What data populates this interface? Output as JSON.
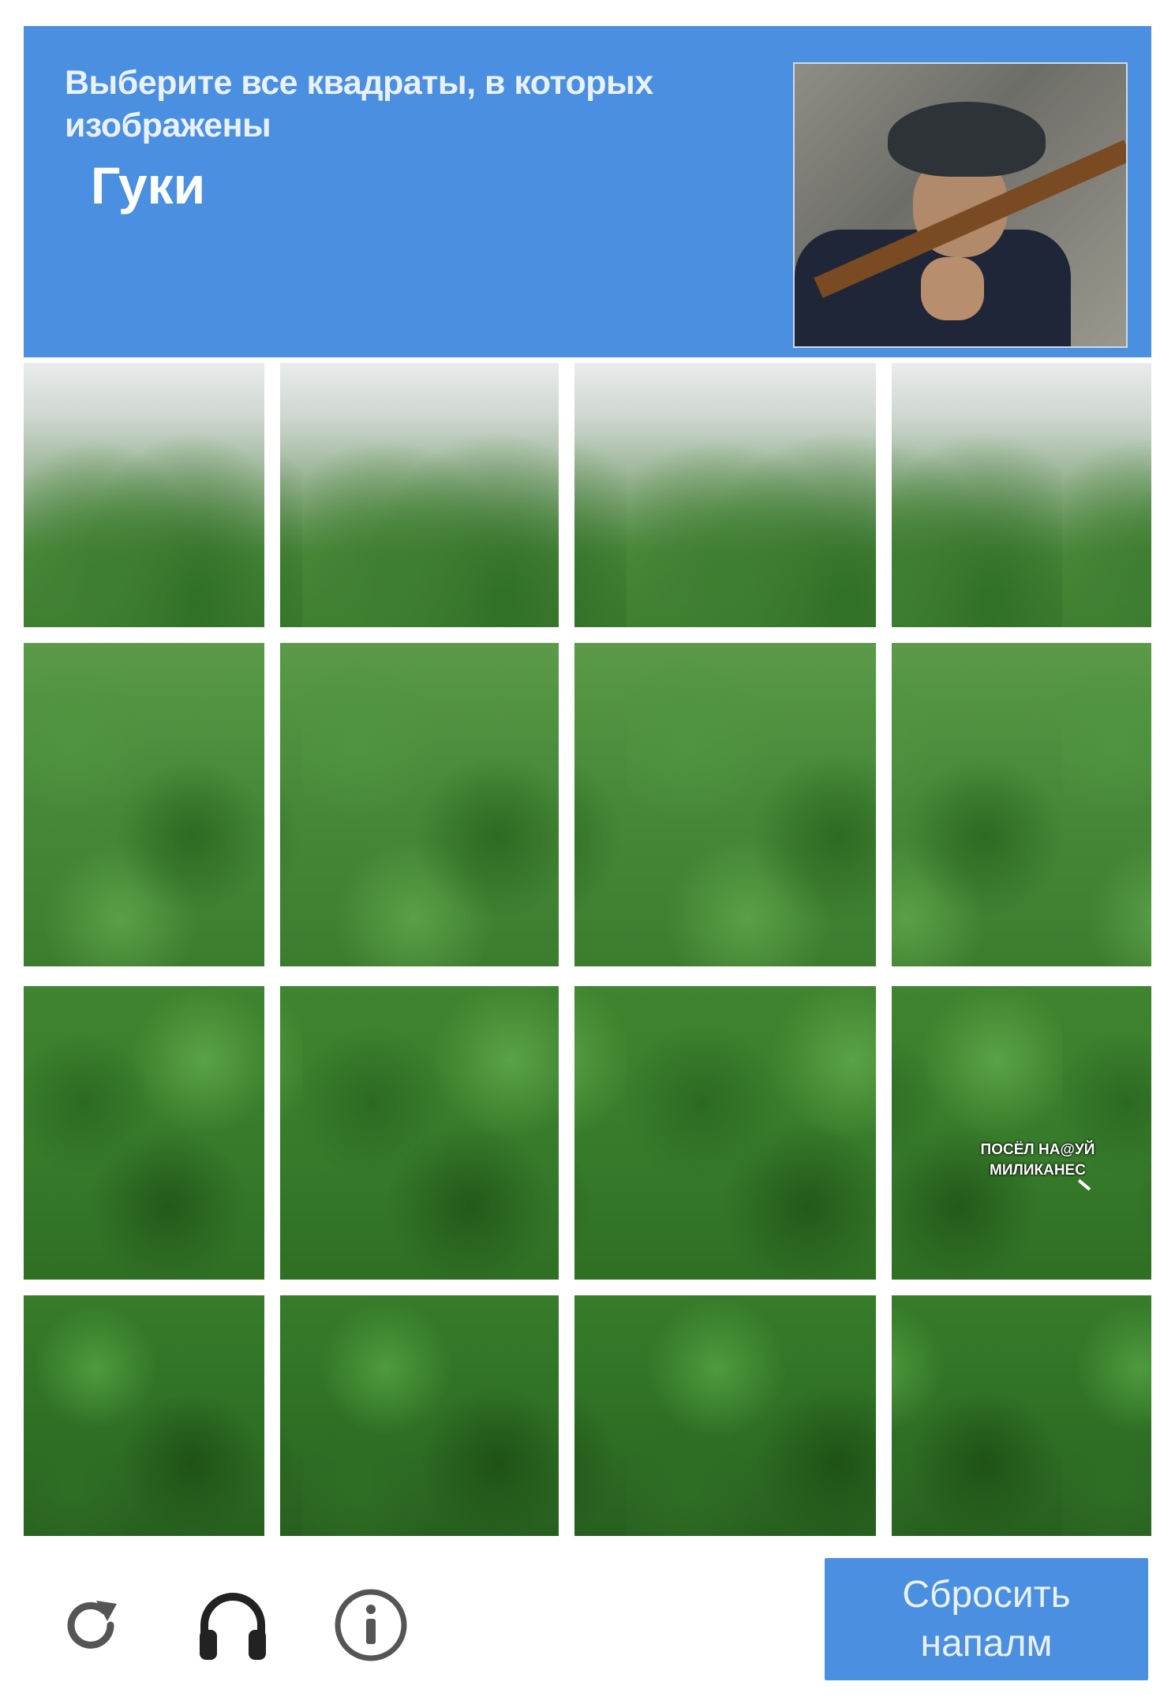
{
  "header": {
    "instruction": "Выберите все квадраты, в которых изображены",
    "target": "Гуки"
  },
  "grid": {
    "rows": 4,
    "columns": 4
  },
  "watermark_caption": [
    "ПОСЁЛ НА@УЙ",
    "МИЛИКАНЕС"
  ],
  "footer": {
    "reload_icon": "reload-icon",
    "audio_icon": "headphones-icon",
    "info_icon": "info-icon",
    "button_line1": "Сбросить",
    "button_line2": "напалм"
  },
  "colors": {
    "accent": "#4a8fe0",
    "icon_gray": "#555555"
  }
}
